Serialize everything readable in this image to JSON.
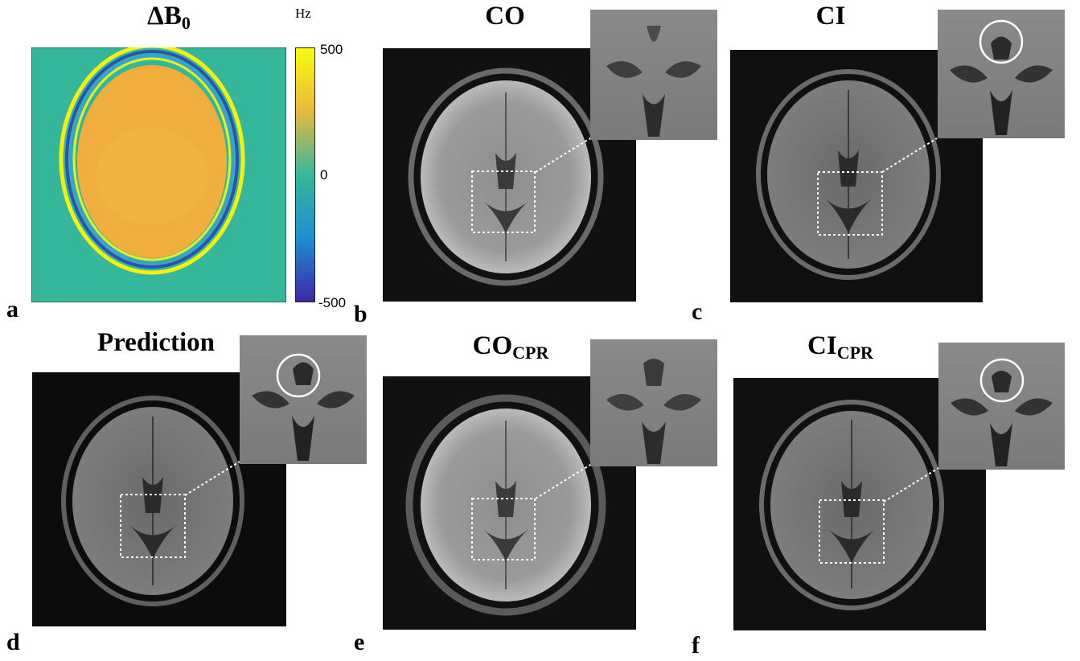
{
  "figure": {
    "panel_a": {
      "label": "a",
      "title_main": "ΔB",
      "title_sub": "0",
      "colorbar": {
        "unit": "Hz",
        "ticks": [
          "500",
          "0",
          "-500"
        ],
        "colormap": [
          "#f9fb0e",
          "#fcc439",
          "#d2b94a",
          "#35b79b",
          "#15a5c8",
          "#2271d8",
          "#3e26a8"
        ]
      }
    },
    "panel_b": {
      "label": "b",
      "title_main": "CO",
      "title_sub": ""
    },
    "panel_c": {
      "label": "c",
      "title_main": "CI",
      "title_sub": ""
    },
    "panel_d": {
      "label": "d",
      "title_main": "Prediction",
      "title_sub": ""
    },
    "panel_e": {
      "label": "e",
      "title_main": "CO",
      "title_sub": "CPR"
    },
    "panel_f": {
      "label": "f",
      "title_main": "CI",
      "title_sub": "CPR"
    }
  }
}
